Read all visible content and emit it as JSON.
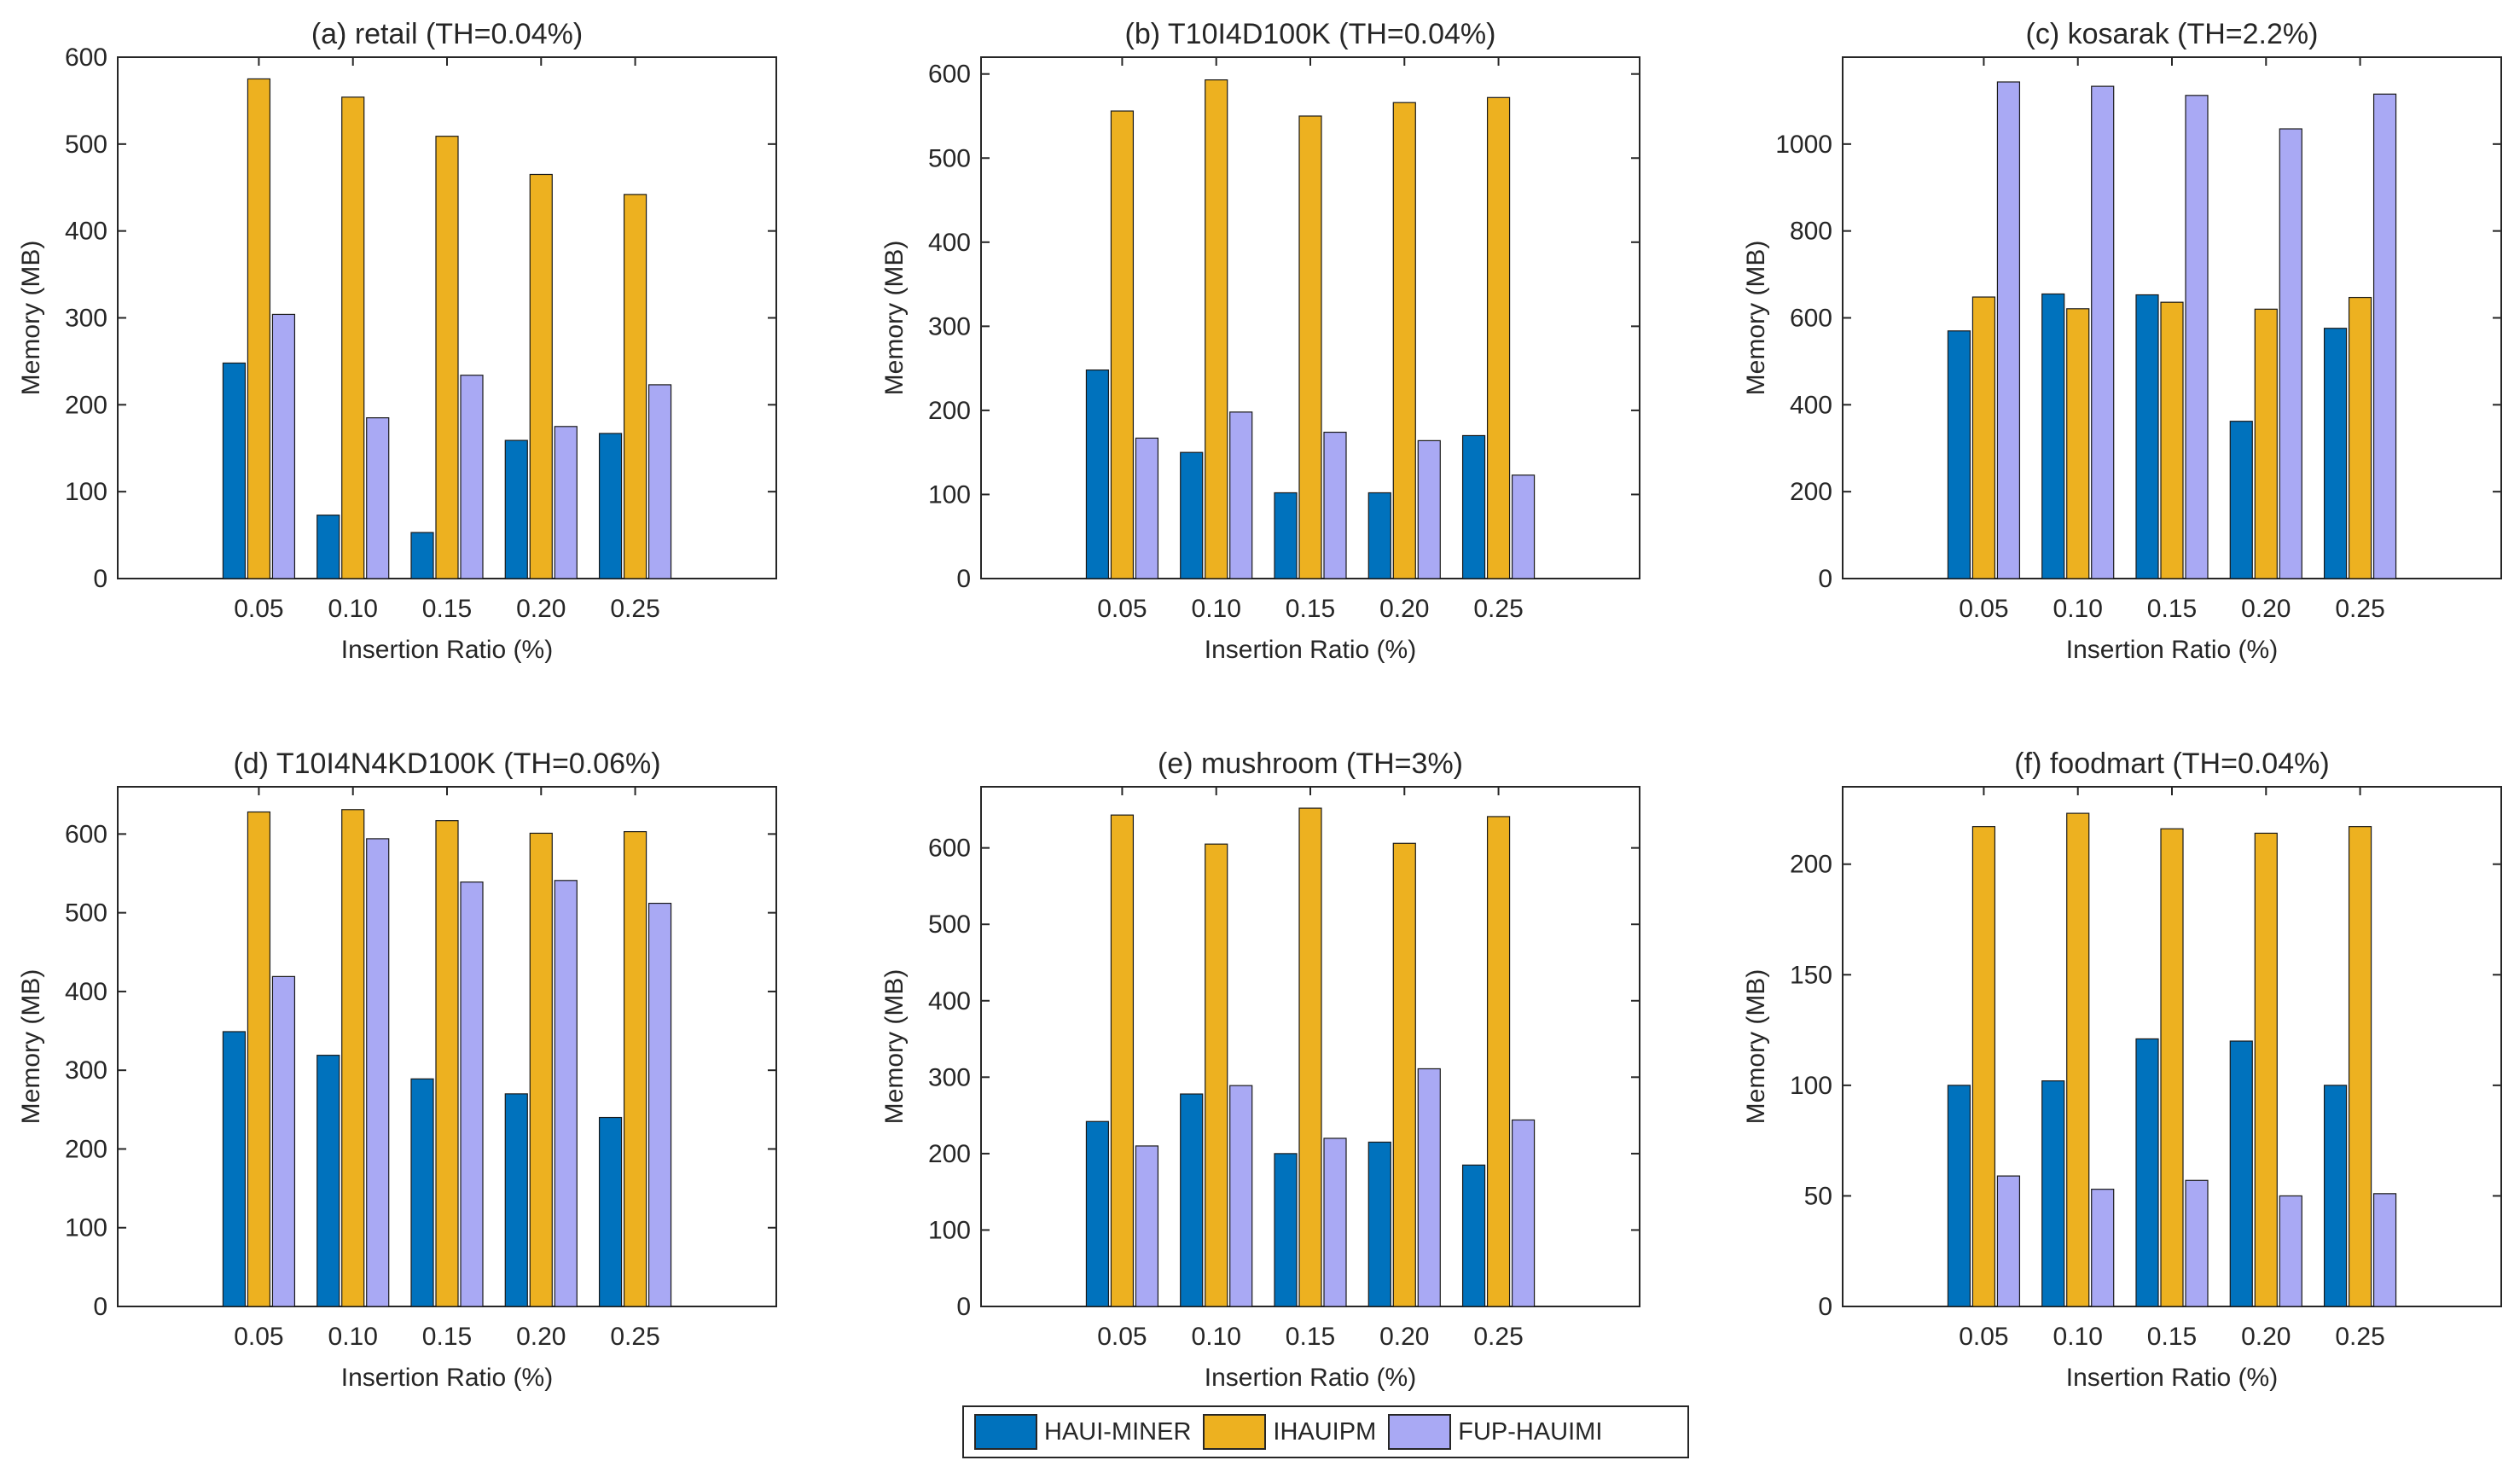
{
  "colors": {
    "haui": "#0072BD",
    "ihauipm": "#EDB120",
    "fup": "#A9A9F4",
    "axis": "#262626",
    "bar_edge": "#1a1a1a"
  },
  "legend": [
    "HAUI-MINER",
    "IHAUIPM",
    "FUP-HAUIMI"
  ],
  "chart_data": [
    {
      "type": "bar",
      "title": "(a) retail (TH=0.04%)",
      "categories": [
        "0.05",
        "0.10",
        "0.15",
        "0.20",
        "0.25"
      ],
      "xlabel": "Insertion Ratio (%)",
      "ylabel": "Memory (MB)",
      "ylim": [
        0,
        600
      ],
      "yticks": [
        0,
        100,
        200,
        300,
        400,
        500,
        600
      ],
      "series": [
        {
          "name": "HAUI-MINER",
          "values": [
            248,
            73,
            53,
            159,
            167
          ]
        },
        {
          "name": "IHAUIPM",
          "values": [
            575,
            554,
            509,
            465,
            442
          ]
        },
        {
          "name": "FUP-HAUIMI",
          "values": [
            304,
            185,
            234,
            175,
            223
          ]
        }
      ]
    },
    {
      "type": "bar",
      "title": "(b) T10I4D100K (TH=0.04%)",
      "categories": [
        "0.05",
        "0.10",
        "0.15",
        "0.20",
        "0.25"
      ],
      "xlabel": "Insertion Ratio (%)",
      "ylabel": "Memory (MB)",
      "ylim": [
        0,
        620
      ],
      "yticks": [
        0,
        100,
        200,
        300,
        400,
        500,
        600
      ],
      "series": [
        {
          "name": "HAUI-MINER",
          "values": [
            248,
            150,
            102,
            102,
            170
          ]
        },
        {
          "name": "IHAUIPM",
          "values": [
            556,
            593,
            550,
            566,
            572
          ]
        },
        {
          "name": "FUP-HAUIMI",
          "values": [
            167,
            198,
            174,
            164,
            123
          ]
        }
      ]
    },
    {
      "type": "bar",
      "title": "(c) kosarak (TH=2.2%)",
      "categories": [
        "0.05",
        "0.10",
        "0.15",
        "0.20",
        "0.25"
      ],
      "xlabel": "Insertion Ratio (%)",
      "ylabel": "Memory (MB)",
      "ylim": [
        0,
        1200
      ],
      "yticks": [
        0,
        200,
        400,
        600,
        800,
        1000
      ],
      "series": [
        {
          "name": "HAUI-MINER",
          "values": [
            570,
            655,
            653,
            362,
            576
          ]
        },
        {
          "name": "IHAUIPM",
          "values": [
            648,
            621,
            636,
            620,
            647
          ]
        },
        {
          "name": "FUP-HAUIMI",
          "values": [
            1143,
            1133,
            1112,
            1035,
            1115
          ]
        }
      ]
    },
    {
      "type": "bar",
      "title": "(d) T10I4N4KD100K (TH=0.06%)",
      "categories": [
        "0.05",
        "0.10",
        "0.15",
        "0.20",
        "0.25"
      ],
      "xlabel": "Insertion Ratio (%)",
      "ylabel": "Memory (MB)",
      "ylim": [
        0,
        660
      ],
      "yticks": [
        0,
        100,
        200,
        300,
        400,
        500,
        600
      ],
      "series": [
        {
          "name": "HAUI-MINER",
          "values": [
            349,
            319,
            289,
            270,
            240
          ]
        },
        {
          "name": "IHAUIPM",
          "values": [
            628,
            631,
            617,
            601,
            603
          ]
        },
        {
          "name": "FUP-HAUIMI",
          "values": [
            419,
            594,
            539,
            541,
            512
          ]
        }
      ]
    },
    {
      "type": "bar",
      "title": "(e) mushroom (TH=3%)",
      "categories": [
        "0.05",
        "0.10",
        "0.15",
        "0.20",
        "0.25"
      ],
      "xlabel": "Insertion Ratio (%)",
      "ylabel": "Memory (MB)",
      "ylim": [
        0,
        680
      ],
      "yticks": [
        0,
        100,
        200,
        300,
        400,
        500,
        600
      ],
      "series": [
        {
          "name": "HAUI-MINER",
          "values": [
            242,
            278,
            200,
            215,
            185
          ]
        },
        {
          "name": "IHAUIPM",
          "values": [
            643,
            605,
            652,
            606,
            641
          ]
        },
        {
          "name": "FUP-HAUIMI",
          "values": [
            210,
            289,
            220,
            311,
            244
          ]
        }
      ]
    },
    {
      "type": "bar",
      "title": "(f) foodmart (TH=0.04%)",
      "categories": [
        "0.05",
        "0.10",
        "0.15",
        "0.20",
        "0.25"
      ],
      "xlabel": "Insertion Ratio (%)",
      "ylabel": "Memory (MB)",
      "ylim": [
        0,
        235
      ],
      "yticks": [
        0,
        50,
        100,
        150,
        200
      ],
      "series": [
        {
          "name": "HAUI-MINER",
          "values": [
            100,
            102,
            121,
            120,
            100
          ]
        },
        {
          "name": "IHAUIPM",
          "values": [
            217,
            223,
            216,
            214,
            217
          ]
        },
        {
          "name": "FUP-HAUIMI",
          "values": [
            59,
            53,
            57,
            50,
            51
          ]
        }
      ]
    }
  ]
}
